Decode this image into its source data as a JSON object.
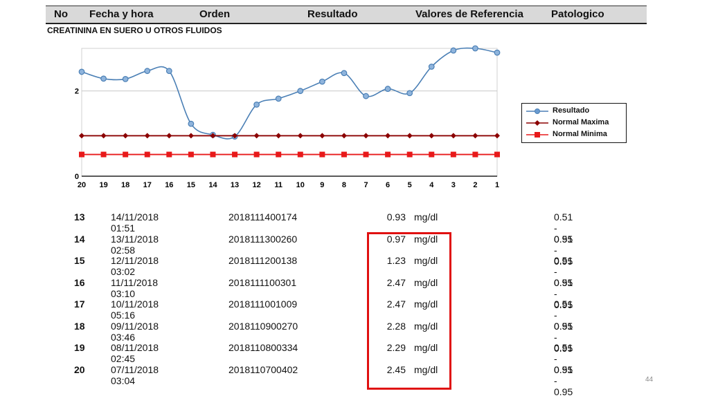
{
  "header": {
    "columns": [
      "No",
      "Fecha y hora",
      "Orden",
      "Resultado",
      "Valores de Referencia",
      "Patologico"
    ]
  },
  "section_title": "CREATININA EN SUERO U OTROS FLUIDOS",
  "chart_data": {
    "type": "line",
    "x": [
      "20",
      "19",
      "18",
      "17",
      "16",
      "15",
      "14",
      "13",
      "12",
      "11",
      "10",
      "9",
      "8",
      "7",
      "6",
      "5",
      "4",
      "3",
      "2",
      "1"
    ],
    "y_ticks": [
      "0",
      "2"
    ],
    "ylim": [
      0,
      3
    ],
    "grid": true,
    "legend_position": "right",
    "series": [
      {
        "name": "Resultado",
        "color": "#4a7fb5",
        "values": [
          2.45,
          2.29,
          2.28,
          2.47,
          2.47,
          1.23,
          0.97,
          0.93,
          1.68,
          1.82,
          2.0,
          2.22,
          2.42,
          1.88,
          2.05,
          1.95,
          2.57,
          2.95,
          3.0,
          2.9
        ]
      },
      {
        "name": "Normal Maxima",
        "color": "#8b0000",
        "values": [
          0.95,
          0.95,
          0.95,
          0.95,
          0.95,
          0.95,
          0.95,
          0.95,
          0.95,
          0.95,
          0.95,
          0.95,
          0.95,
          0.95,
          0.95,
          0.95,
          0.95,
          0.95,
          0.95,
          0.95
        ]
      },
      {
        "name": "Normal Minima",
        "color": "#e8191a",
        "values": [
          0.51,
          0.51,
          0.51,
          0.51,
          0.51,
          0.51,
          0.51,
          0.51,
          0.51,
          0.51,
          0.51,
          0.51,
          0.51,
          0.51,
          0.51,
          0.51,
          0.51,
          0.51,
          0.51,
          0.51
        ]
      }
    ]
  },
  "rows": [
    {
      "no": "13",
      "fecha": "14/11/2018 01:51",
      "orden": "2018111400174",
      "valor": "0.93",
      "unit": "mg/dl",
      "ref": "0.51 - 0.95"
    },
    {
      "no": "14",
      "fecha": "13/11/2018 02:58",
      "orden": "2018111300260",
      "valor": "0.97",
      "unit": "mg/dl",
      "ref": "0.51 - 0.95"
    },
    {
      "no": "15",
      "fecha": "12/11/2018 03:02",
      "orden": "2018111200138",
      "valor": "1.23",
      "unit": "mg/dl",
      "ref": "0.51 - 0.95"
    },
    {
      "no": "16",
      "fecha": "11/11/2018 03:10",
      "orden": "2018111100301",
      "valor": "2.47",
      "unit": "mg/dl",
      "ref": "0.51 - 0.95"
    },
    {
      "no": "17",
      "fecha": "10/11/2018 05:16",
      "orden": "2018111001009",
      "valor": "2.47",
      "unit": "mg/dl",
      "ref": "0.51 - 0.95"
    },
    {
      "no": "18",
      "fecha": "09/11/2018 03:46",
      "orden": "2018110900270",
      "valor": "2.28",
      "unit": "mg/dl",
      "ref": "0.51 - 0.95"
    },
    {
      "no": "19",
      "fecha": "08/11/2018 02:45",
      "orden": "2018110800334",
      "valor": "2.29",
      "unit": "mg/dl",
      "ref": "0.51 - 0.95"
    },
    {
      "no": "20",
      "fecha": "07/11/2018 03:04",
      "orden": "2018110700402",
      "valor": "2.45",
      "unit": "mg/dl",
      "ref": "0.51 - 0.95"
    }
  ],
  "colors": {
    "highlight": "#e01010",
    "header_bg": "#d9d9d9"
  },
  "page_number": "44"
}
